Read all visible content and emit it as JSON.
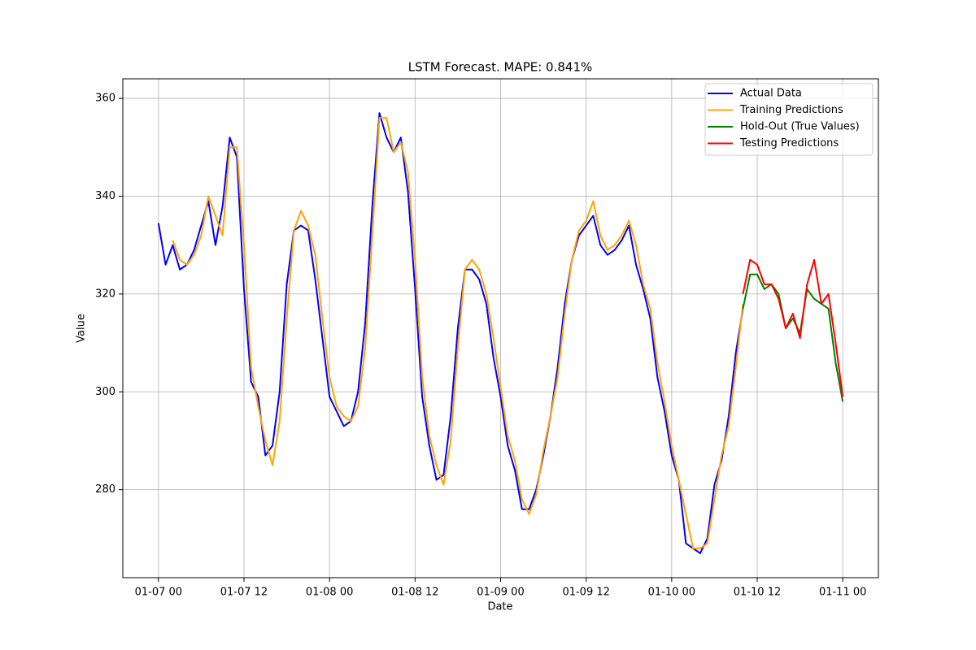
{
  "chart_data": {
    "type": "line",
    "title": "LSTM Forecast. MAPE: 0.841%",
    "xlabel": "Date",
    "ylabel": "Value",
    "x": [
      "01-07 00",
      "01-07 01",
      "01-07 02",
      "01-07 03",
      "01-07 04",
      "01-07 05",
      "01-07 06",
      "01-07 07",
      "01-07 08",
      "01-07 09",
      "01-07 10",
      "01-07 11",
      "01-07 12",
      "01-07 13",
      "01-07 14",
      "01-07 15",
      "01-07 16",
      "01-07 17",
      "01-07 18",
      "01-07 19",
      "01-07 20",
      "01-07 21",
      "01-07 22",
      "01-07 23",
      "01-08 00",
      "01-08 01",
      "01-08 02",
      "01-08 03",
      "01-08 04",
      "01-08 05",
      "01-08 06",
      "01-08 07",
      "01-08 08",
      "01-08 09",
      "01-08 10",
      "01-08 11",
      "01-08 12",
      "01-08 13",
      "01-08 14",
      "01-08 15",
      "01-08 16",
      "01-08 17",
      "01-08 18",
      "01-08 19",
      "01-08 20",
      "01-08 21",
      "01-08 22",
      "01-08 23",
      "01-09 00",
      "01-09 01",
      "01-09 02",
      "01-09 03",
      "01-09 04",
      "01-09 05",
      "01-09 06",
      "01-09 07",
      "01-09 08",
      "01-09 09",
      "01-09 10",
      "01-09 11",
      "01-09 12",
      "01-09 13",
      "01-09 14",
      "01-09 15",
      "01-09 16",
      "01-09 17",
      "01-09 18",
      "01-09 19",
      "01-09 20",
      "01-09 21",
      "01-09 22",
      "01-09 23",
      "01-10 00",
      "01-10 01",
      "01-10 02",
      "01-10 03",
      "01-10 04",
      "01-10 05",
      "01-10 06",
      "01-10 07",
      "01-10 08",
      "01-10 09",
      "01-10 10",
      "01-10 11",
      "01-10 12",
      "01-10 13",
      "01-10 14",
      "01-10 15",
      "01-10 16",
      "01-10 17",
      "01-10 18",
      "01-10 19",
      "01-10 20",
      "01-10 21",
      "01-10 22",
      "01-10 23",
      "01-11 00"
    ],
    "series": [
      {
        "name": "Actual Data",
        "color": "blue",
        "values": [
          334.5,
          326,
          330,
          325,
          326,
          329,
          334,
          339,
          330,
          338,
          352,
          348,
          321,
          302,
          299,
          287,
          289,
          300,
          322,
          333,
          334,
          333,
          323,
          311,
          299,
          296,
          293,
          294,
          300,
          314,
          338,
          357,
          352,
          349,
          352,
          341,
          321,
          299,
          289,
          282,
          283,
          295,
          313,
          325,
          325,
          323,
          318,
          307,
          299,
          289,
          284,
          276,
          276,
          280,
          287,
          295,
          305,
          318,
          327,
          332,
          334,
          336,
          330,
          328,
          329,
          331,
          334,
          326,
          321,
          315,
          303,
          296,
          287,
          282,
          269,
          268,
          267,
          270,
          281,
          286,
          295,
          308,
          317,
          null,
          null,
          null,
          null,
          null,
          null,
          null,
          null,
          null,
          null,
          null,
          null,
          null,
          null
        ]
      },
      {
        "name": "Training Predictions",
        "color": "orange",
        "values": [
          null,
          null,
          331,
          327,
          326,
          328,
          332,
          340,
          336,
          332,
          350,
          350,
          330,
          305,
          297,
          290,
          285,
          294,
          315,
          333,
          337,
          334,
          328,
          315,
          303,
          297,
          295,
          294,
          297,
          309,
          332,
          356,
          356,
          349,
          351,
          345,
          327,
          303,
          291,
          285,
          281,
          290,
          309,
          325,
          327,
          325,
          320,
          311,
          301,
          291,
          286,
          278,
          275,
          279,
          288,
          295,
          303,
          316,
          327,
          333,
          335,
          339,
          332,
          329,
          330,
          332,
          335,
          330,
          322,
          317,
          306,
          298,
          289,
          282,
          275,
          268,
          268,
          269,
          278,
          287,
          293,
          305,
          318,
          null,
          null,
          null,
          null,
          null,
          null,
          null,
          null,
          null,
          null,
          null,
          null,
          null,
          null
        ]
      },
      {
        "name": "Hold-Out (True Values)",
        "color": "green",
        "values": [
          null,
          null,
          null,
          null,
          null,
          null,
          null,
          null,
          null,
          null,
          null,
          null,
          null,
          null,
          null,
          null,
          null,
          null,
          null,
          null,
          null,
          null,
          null,
          null,
          null,
          null,
          null,
          null,
          null,
          null,
          null,
          null,
          null,
          null,
          null,
          null,
          null,
          null,
          null,
          null,
          null,
          null,
          null,
          null,
          null,
          null,
          null,
          null,
          null,
          null,
          null,
          null,
          null,
          null,
          null,
          null,
          null,
          null,
          null,
          null,
          null,
          null,
          null,
          null,
          null,
          null,
          null,
          null,
          null,
          null,
          null,
          null,
          null,
          null,
          null,
          null,
          null,
          null,
          null,
          null,
          null,
          null,
          317,
          324,
          324,
          321,
          322,
          320,
          313,
          315,
          312,
          321,
          319,
          318,
          317,
          306,
          298
        ]
      },
      {
        "name": "Testing Predictions",
        "color": "red",
        "values": [
          null,
          null,
          null,
          null,
          null,
          null,
          null,
          null,
          null,
          null,
          null,
          null,
          null,
          null,
          null,
          null,
          null,
          null,
          null,
          null,
          null,
          null,
          null,
          null,
          null,
          null,
          null,
          null,
          null,
          null,
          null,
          null,
          null,
          null,
          null,
          null,
          null,
          null,
          null,
          null,
          null,
          null,
          null,
          null,
          null,
          null,
          null,
          null,
          null,
          null,
          null,
          null,
          null,
          null,
          null,
          null,
          null,
          null,
          null,
          null,
          null,
          null,
          null,
          null,
          null,
          null,
          null,
          null,
          null,
          null,
          null,
          null,
          null,
          null,
          null,
          null,
          null,
          null,
          null,
          null,
          null,
          null,
          320,
          327,
          326,
          322,
          322,
          319,
          313,
          316,
          311,
          322,
          327,
          318,
          320,
          310,
          299
        ]
      }
    ],
    "xlim": [
      "01-06 19",
      "01-11 05"
    ],
    "xticks": [
      "01-07 00",
      "01-07 12",
      "01-08 00",
      "01-08 12",
      "01-09 00",
      "01-09 12",
      "01-10 00",
      "01-10 12",
      "01-11 00"
    ],
    "ylim": [
      262,
      364
    ],
    "yticks": [
      280,
      300,
      320,
      340,
      360
    ],
    "grid": true,
    "legend": "upper right"
  }
}
